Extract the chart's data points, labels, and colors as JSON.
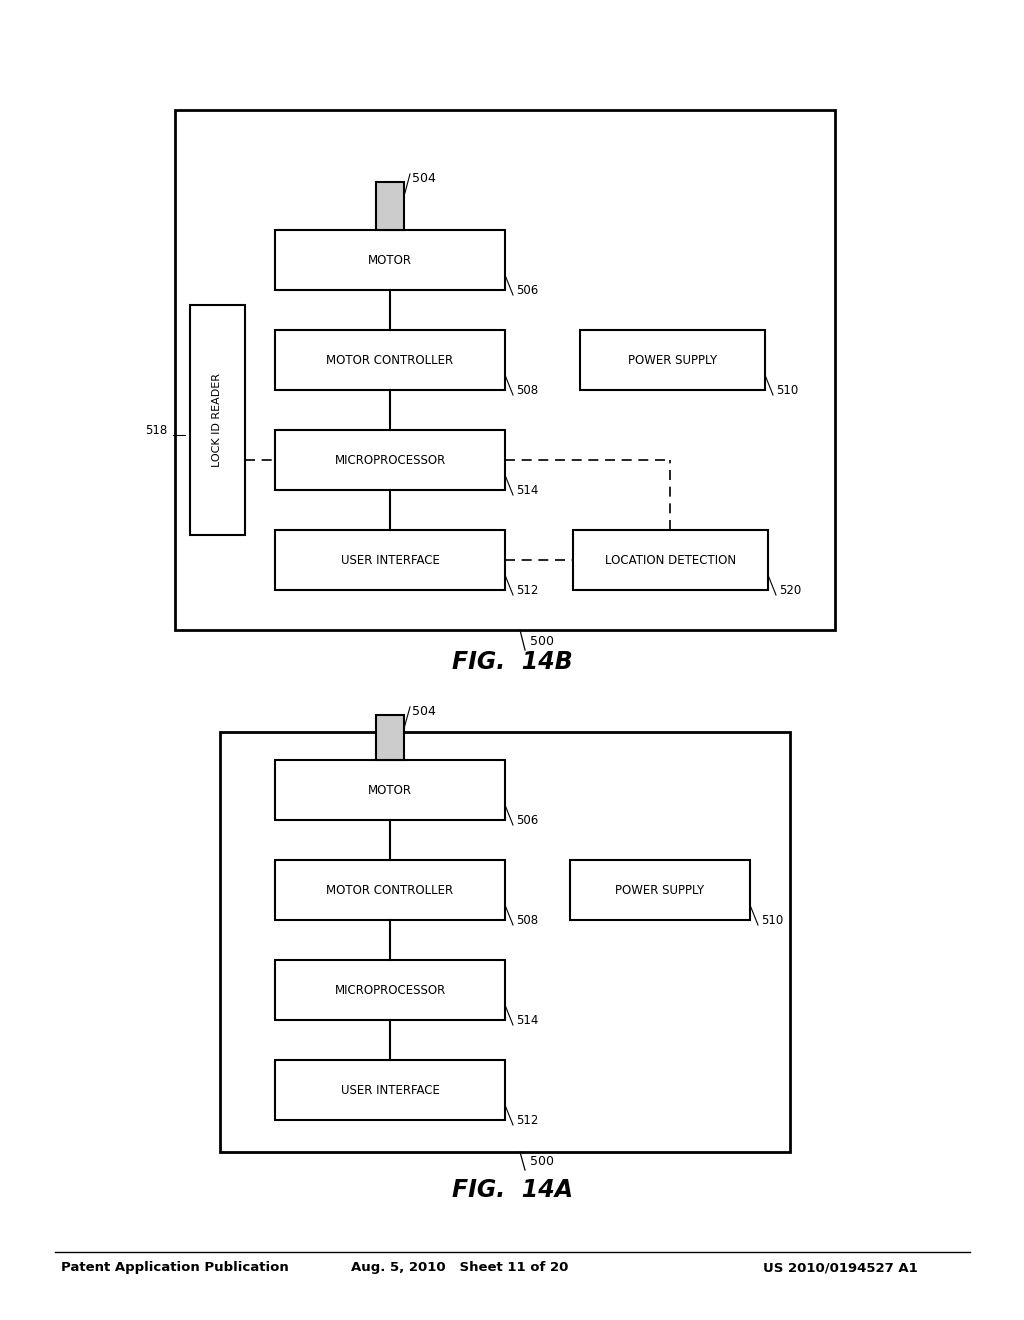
{
  "bg_color": "#ffffff",
  "header_left": "Patent Application Publication",
  "header_mid": "Aug. 5, 2010   Sheet 11 of 20",
  "header_right": "US 2010/0194527 A1",
  "fig14a_title": "FIG.  14A",
  "fig14b_title": "FIG.  14B"
}
